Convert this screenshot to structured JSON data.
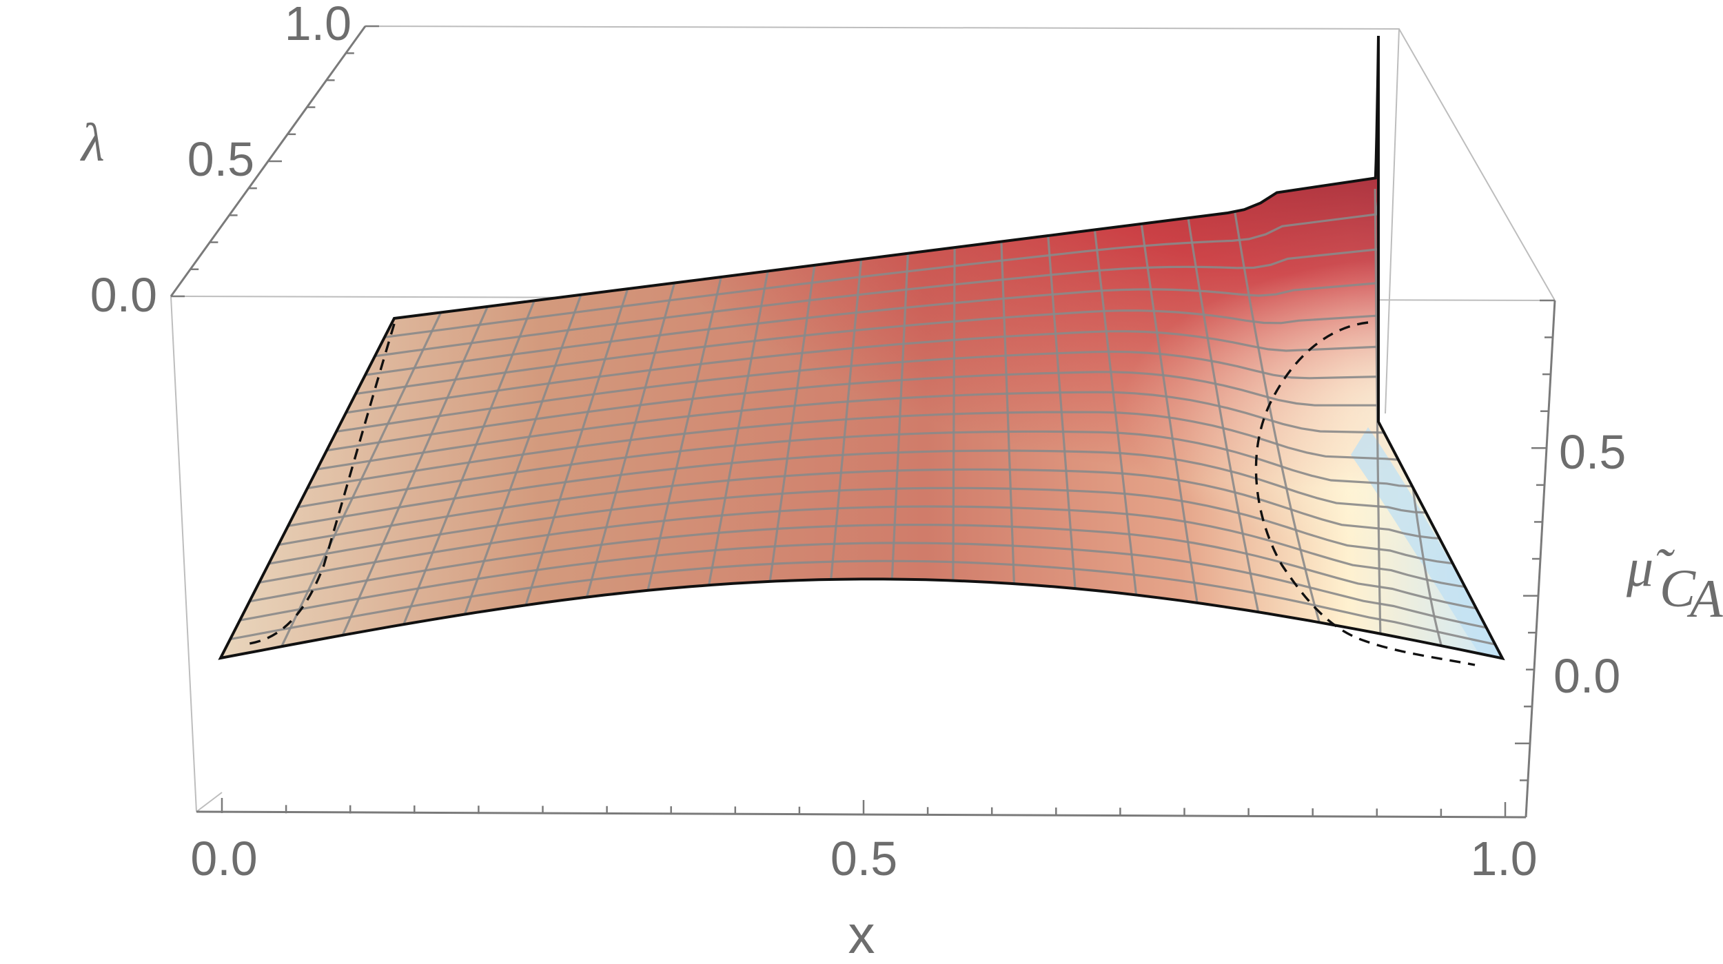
{
  "chart_data": {
    "type": "surface3d",
    "axes": {
      "x": {
        "label": "x",
        "ticks": [
          "0.0",
          "0.5",
          "1.0"
        ]
      },
      "lambda": {
        "label": "λ",
        "ticks": [
          "0.0",
          "0.5",
          "1.0"
        ]
      },
      "mu": {
        "label_main": "μ̃",
        "label_sub": "C",
        "label_sub2": "A",
        "ticks": [
          "0.0",
          "0.5"
        ]
      }
    },
    "colormap": [
      "#e8d9c0",
      "#d49a7c",
      "#c9312f",
      "#a6192b",
      "#fff6d8",
      "#cfe8f6"
    ],
    "mesh": {
      "x_lines": 21,
      "lambda_lines": 18
    },
    "overlay": {
      "style": "dashed",
      "description_in_image": ""
    }
  }
}
